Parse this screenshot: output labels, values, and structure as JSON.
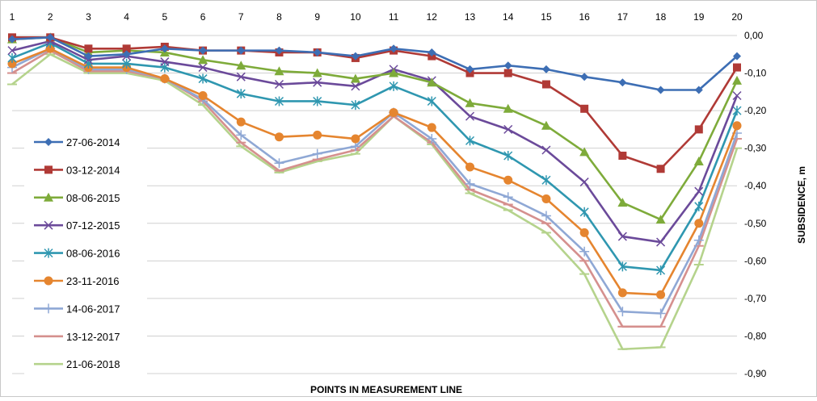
{
  "chart_data": {
    "type": "line",
    "title": "",
    "xlabel": "POINTS IN MEASUREMENT LINE",
    "ylabel": "SUBSIDENCE, m",
    "x": [
      1,
      2,
      3,
      4,
      5,
      6,
      7,
      8,
      9,
      10,
      11,
      12,
      13,
      14,
      15,
      16,
      17,
      18,
      19,
      20
    ],
    "x_tick_labels": [
      "1",
      "2",
      "3",
      "4",
      "5",
      "6",
      "7",
      "8",
      "9",
      "10",
      "11",
      "12",
      "13",
      "14",
      "15",
      "16",
      "17",
      "18",
      "19",
      "20"
    ],
    "ylim": [
      -0.9,
      0.0
    ],
    "y_ticks": [
      0,
      -0.1,
      -0.2,
      -0.3,
      -0.4,
      -0.5,
      -0.6,
      -0.7,
      -0.8,
      -0.9
    ],
    "y_tick_labels": [
      "0,00",
      "-0,10",
      "-0,20",
      "-0,30",
      "-0,40",
      "-0,50",
      "-0,60",
      "-0,70",
      "-0,80",
      "-0,90"
    ],
    "grid": "horizontal",
    "legend_position": "left",
    "series": [
      {
        "name": "27-06-2014",
        "color": "#3d6eb4",
        "marker": "diamond",
        "values": [
          -0.01,
          -0.005,
          -0.055,
          -0.05,
          -0.035,
          -0.04,
          -0.04,
          -0.04,
          -0.045,
          -0.055,
          -0.035,
          -0.045,
          -0.09,
          -0.08,
          -0.09,
          -0.11,
          -0.125,
          -0.145,
          -0.145,
          -0.055
        ]
      },
      {
        "name": "03-12-2014",
        "color": "#b03a36",
        "marker": "square",
        "values": [
          -0.005,
          -0.005,
          -0.035,
          -0.035,
          -0.03,
          -0.04,
          -0.04,
          -0.045,
          -0.045,
          -0.06,
          -0.04,
          -0.055,
          -0.1,
          -0.1,
          -0.13,
          -0.195,
          -0.32,
          -0.355,
          -0.25,
          -0.085
        ]
      },
      {
        "name": "08-06-2015",
        "color": "#7eab3a",
        "marker": "triangle",
        "values": [
          -0.01,
          -0.005,
          -0.045,
          -0.04,
          -0.045,
          -0.065,
          -0.08,
          -0.095,
          -0.1,
          -0.115,
          -0.1,
          -0.125,
          -0.18,
          -0.195,
          -0.24,
          -0.31,
          -0.445,
          -0.49,
          -0.335,
          -0.12
        ]
      },
      {
        "name": "07-12-2015",
        "color": "#6b4a9a",
        "marker": "x",
        "values": [
          -0.04,
          -0.015,
          -0.065,
          -0.055,
          -0.07,
          -0.085,
          -0.11,
          -0.13,
          -0.125,
          -0.135,
          -0.09,
          -0.12,
          -0.215,
          -0.25,
          -0.305,
          -0.39,
          -0.535,
          -0.55,
          -0.415,
          -0.16
        ]
      },
      {
        "name": "08-06-2016",
        "color": "#2f97b0",
        "marker": "star",
        "values": [
          -0.06,
          -0.02,
          -0.075,
          -0.075,
          -0.085,
          -0.115,
          -0.155,
          -0.175,
          -0.175,
          -0.185,
          -0.135,
          -0.175,
          -0.28,
          -0.32,
          -0.385,
          -0.47,
          -0.615,
          -0.625,
          -0.455,
          -0.2
        ]
      },
      {
        "name": "23-11-2016",
        "color": "#e5852f",
        "marker": "circle",
        "values": [
          -0.075,
          -0.035,
          -0.085,
          -0.085,
          -0.115,
          -0.16,
          -0.23,
          -0.27,
          -0.265,
          -0.275,
          -0.205,
          -0.245,
          -0.35,
          -0.385,
          -0.435,
          -0.525,
          -0.685,
          -0.69,
          -0.5,
          -0.24
        ]
      },
      {
        "name": "14-06-2017",
        "color": "#8fa8d5",
        "marker": "plus",
        "values": [
          -0.085,
          -0.035,
          -0.09,
          -0.09,
          -0.115,
          -0.17,
          -0.265,
          -0.34,
          -0.315,
          -0.295,
          -0.205,
          -0.275,
          -0.395,
          -0.43,
          -0.48,
          -0.575,
          -0.735,
          -0.74,
          -0.545,
          -0.26
        ]
      },
      {
        "name": "13-12-2017",
        "color": "#d5908e",
        "marker": "dash",
        "values": [
          -0.1,
          -0.04,
          -0.095,
          -0.095,
          -0.115,
          -0.175,
          -0.285,
          -0.36,
          -0.33,
          -0.305,
          -0.215,
          -0.285,
          -0.41,
          -0.45,
          -0.5,
          -0.6,
          -0.775,
          -0.775,
          -0.56,
          -0.275
        ]
      },
      {
        "name": "21-06-2018",
        "color": "#b5d38c",
        "marker": "dash",
        "values": [
          -0.13,
          -0.05,
          -0.1,
          -0.1,
          -0.12,
          -0.185,
          -0.295,
          -0.365,
          -0.335,
          -0.315,
          -0.215,
          -0.29,
          -0.42,
          -0.465,
          -0.525,
          -0.635,
          -0.835,
          -0.83,
          -0.61,
          -0.3
        ]
      }
    ]
  }
}
